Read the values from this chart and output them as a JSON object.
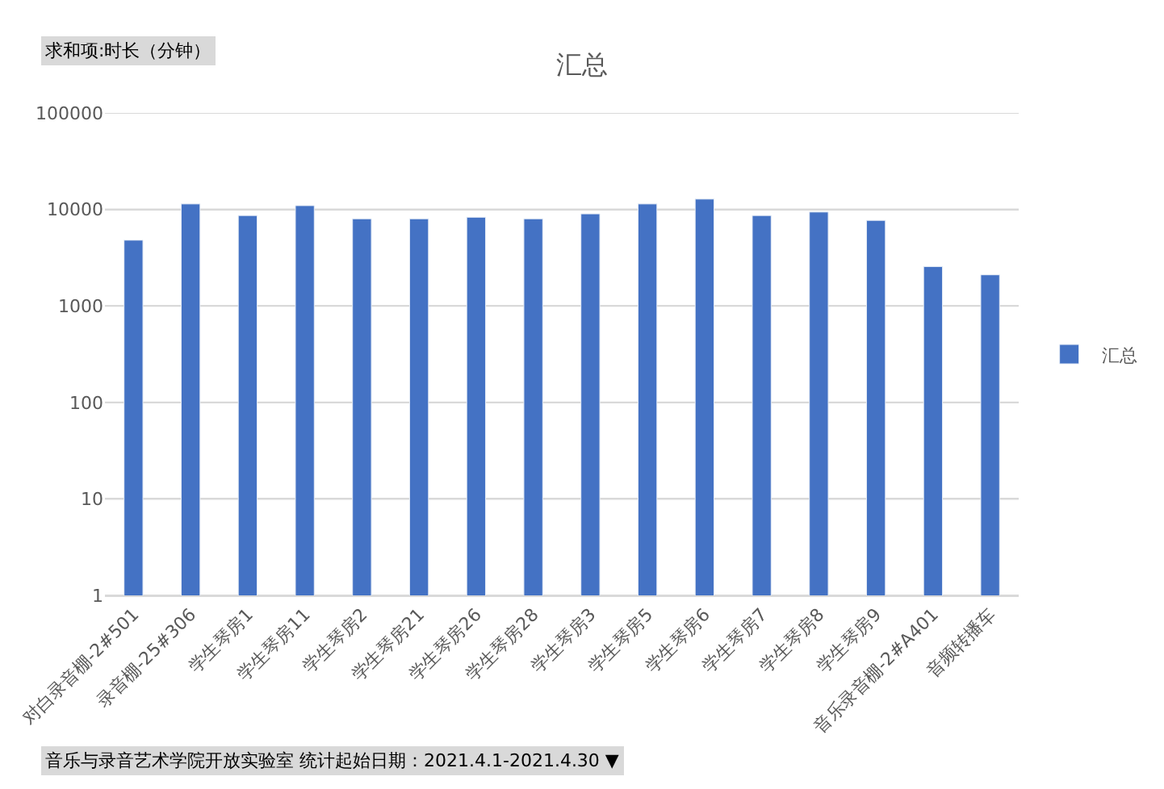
{
  "chart_data": {
    "type": "bar",
    "title": "汇总",
    "categories": [
      "对白录音棚-2#501",
      "录音棚-25#306",
      "学生琴房1",
      "学生琴房11",
      "学生琴房2",
      "学生琴房21",
      "学生琴房26",
      "学生琴房28",
      "学生琴房3",
      "学生琴房5",
      "学生琴房6",
      "学生琴房7",
      "学生琴房8",
      "学生琴房9",
      "音乐录音棚-2#A401",
      "音频转播车"
    ],
    "series": [
      {
        "name": "汇总",
        "color": "#4472c4",
        "values": [
          4800,
          11400,
          8650,
          10950,
          8000,
          8000,
          8300,
          8000,
          9000,
          11400,
          12800,
          8650,
          9400,
          7700,
          2560,
          2100
        ]
      }
    ],
    "ylim": [
      1,
      100000
    ],
    "yticks": [
      1,
      10,
      100,
      1000,
      10000,
      100000
    ],
    "log": true,
    "grid": "y",
    "legend": "right",
    "annotations": [
      "求和项:时长（分钟）",
      "音乐与录音艺术学院开放实验室 统计起始日期：2021.4.1-2021.4.30 ▼"
    ]
  }
}
